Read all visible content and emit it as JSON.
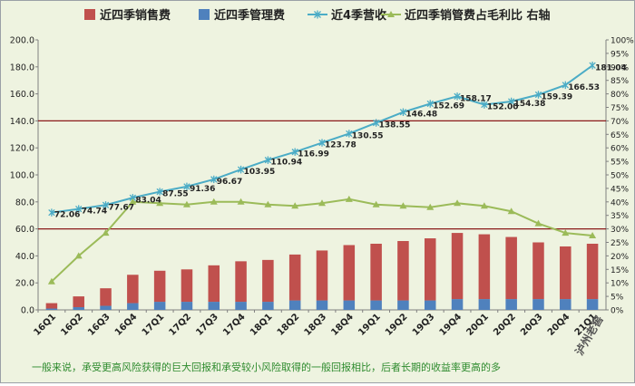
{
  "chart_data": {
    "type": "bar",
    "x": [
      "16Q1",
      "16Q2",
      "16Q3",
      "16Q4",
      "17Q1",
      "17Q2",
      "17Q3",
      "17Q4",
      "18Q1",
      "18Q2",
      "18Q3",
      "18Q4",
      "19Q1",
      "19Q2",
      "19Q3",
      "19Q4",
      "20Q1",
      "20Q2",
      "20Q3",
      "20Q4",
      "21Q1"
    ],
    "y_left_ticks": [
      "0.0",
      "20.0",
      "40.0",
      "60.0",
      "80.0",
      "100.0",
      "120.0",
      "140.0",
      "160.0",
      "180.0",
      "200.0"
    ],
    "y_right_ticks": [
      "0%",
      "5%",
      "10%",
      "15%",
      "20%",
      "25%",
      "30%",
      "35%",
      "40%",
      "45%",
      "50%",
      "55%",
      "60%",
      "65%",
      "70%",
      "75%",
      "80%",
      "85%",
      "90%",
      "95%",
      "100%"
    ],
    "ylim_left": [
      0,
      200
    ],
    "ylim_right": [
      0,
      100
    ],
    "reference_lines_left": [
      140,
      60
    ],
    "series": [
      {
        "name": "近四季销售费",
        "type": "bar",
        "axis": "left",
        "color": "#c0504d",
        "values": [
          4,
          8,
          13,
          21,
          23,
          24,
          27,
          30,
          31,
          34,
          37,
          41,
          42,
          44,
          46,
          49,
          48,
          46,
          42,
          39,
          41
        ]
      },
      {
        "name": "近四季管理费",
        "type": "bar",
        "axis": "left",
        "color": "#4f81bd",
        "values": [
          1,
          2,
          3,
          5,
          6,
          6,
          6,
          6,
          6,
          7,
          7,
          7,
          7,
          7,
          7,
          8,
          8,
          8,
          8,
          8,
          8
        ]
      },
      {
        "name": "近4季营收",
        "type": "line",
        "axis": "left",
        "color": "#4bacc6",
        "values": [
          72.06,
          74.74,
          77.67,
          83.04,
          87.55,
          91.36,
          96.67,
          103.95,
          110.94,
          116.99,
          123.78,
          130.55,
          138.55,
          146.48,
          152.69,
          158.17,
          152.0,
          154.38,
          159.39,
          166.53,
          181.04
        ],
        "labels": [
          "72.06",
          "74.74",
          "77.67",
          "83.04",
          "87.55",
          "91.36",
          "96.67",
          "103.95",
          "110.94",
          "116.99",
          "123.78",
          "130.55",
          "138.55",
          "146.48",
          "152.69",
          "158.17",
          "152.00",
          "154.38",
          "159.39",
          "166.53",
          "181.04"
        ]
      },
      {
        "name": "近四季销管费占毛利比 右轴",
        "type": "line",
        "axis": "right",
        "color": "#9bbb59",
        "values": [
          10.5,
          20,
          28.5,
          40,
          39.5,
          39,
          40,
          40,
          39,
          38.5,
          39.5,
          41,
          39,
          38.5,
          38,
          39.5,
          38.5,
          36.5,
          32,
          28.5,
          27.5
        ]
      }
    ],
    "legend_position": "top",
    "grid": false
  },
  "annotation": "一般来说，承受更高风险获得的巨大回报和承受较小风险取得的一般回报相比，后者长期的收益率更高的多",
  "watermark": "泸州老窖"
}
